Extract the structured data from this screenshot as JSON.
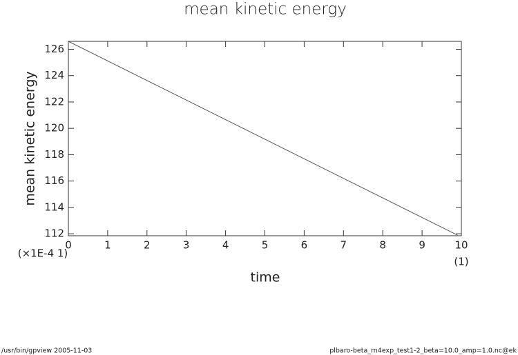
{
  "chart_data": {
    "type": "line",
    "title": "mean kinetic energy",
    "xlabel": "time",
    "ylabel": "mean kinetic energy",
    "y_multiplier_label": "(×1E-4 1)",
    "x_unit_label": "(1)",
    "footer_left": "/usr/bin/gpview   2005-11-03",
    "footer_right": "plbaro-beta_rn4exp_test1-2_beta=10.0_amp=1.0.nc@ek",
    "x": [
      0,
      9.9
    ],
    "series": [
      {
        "name": "mean kinetic energy",
        "color": "#555555",
        "values": [
          126.6,
          111.9
        ]
      }
    ],
    "xlim": [
      0,
      10
    ],
    "xticks": [
      0,
      1,
      2,
      3,
      4,
      5,
      6,
      7,
      8,
      9,
      10
    ],
    "ylim": [
      111.85,
      126.6
    ],
    "yticks": [
      112,
      114,
      116,
      118,
      120,
      122,
      124,
      126
    ],
    "grid": false
  }
}
